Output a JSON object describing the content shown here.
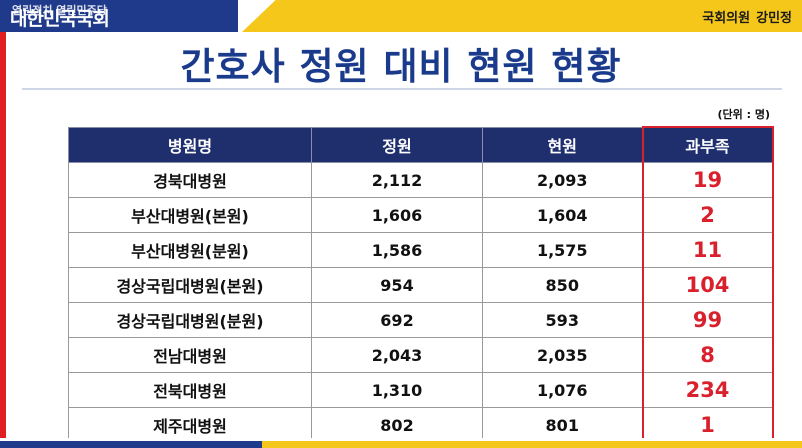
{
  "header": {
    "logo_text": "대한민국국회",
    "logo_overlay": "열린정치 열린민주당",
    "member_party": "국회의원",
    "member_name": "강민정"
  },
  "title": "간호사 정원 대비 현원 현황",
  "unit": "(단위 : 명)",
  "table": {
    "columns": [
      "병원명",
      "정원",
      "현원",
      "과부족"
    ],
    "rows": [
      [
        "경북대병원",
        "2,112",
        "2,093",
        "19"
      ],
      [
        "부산대병원(본원)",
        "1,606",
        "1,604",
        "2"
      ],
      [
        "부산대병원(분원)",
        "1,586",
        "1,575",
        "11"
      ],
      [
        "경상국립대병원(본원)",
        "954",
        "850",
        "104"
      ],
      [
        "경상국립대병원(분원)",
        "692",
        "593",
        "99"
      ],
      [
        "전남대병원",
        "2,043",
        "2,035",
        "8"
      ],
      [
        "전북대병원",
        "1,310",
        "1,076",
        "234"
      ],
      [
        "제주대병원",
        "802",
        "801",
        "1"
      ]
    ]
  },
  "colors": {
    "brand_blue": "#1f3a8a",
    "header_navy": "#1f2f6e",
    "accent_yellow": "#f5c71a",
    "shortage_red": "#d9212e",
    "title_blue": "#1a3a8c"
  }
}
